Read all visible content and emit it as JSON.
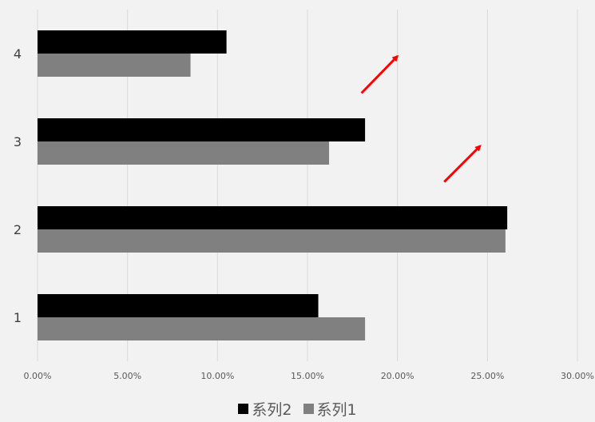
{
  "chart_data": {
    "type": "bar",
    "orientation": "horizontal",
    "categories": [
      "1",
      "2",
      "3",
      "4"
    ],
    "series": [
      {
        "name": "系列2",
        "color": "#000000",
        "values": [
          0.156,
          0.261,
          0.182,
          0.105
        ]
      },
      {
        "name": "系列1",
        "color": "#808080",
        "values": [
          0.182,
          0.26,
          0.162,
          0.085
        ]
      }
    ],
    "xlim": [
      0,
      0.3
    ],
    "xticks": [
      0,
      0.05,
      0.1,
      0.15,
      0.2,
      0.25,
      0.3
    ],
    "xtick_labels": [
      "0.00%",
      "5.00%",
      "10.00%",
      "15.00%",
      "20.00%",
      "25.00%",
      "30.00%"
    ],
    "grid": "vertical",
    "legend_position": "bottom",
    "annotations": [
      {
        "type": "arrow",
        "color": "#ff0000",
        "from": [
          0.18,
          3.55
        ],
        "to": [
          0.2,
          3.97
        ]
      },
      {
        "type": "arrow",
        "color": "#ff0000",
        "from": [
          0.226,
          2.54
        ],
        "to": [
          0.246,
          2.95
        ]
      }
    ]
  },
  "legend": {
    "items": [
      {
        "label": "系列2",
        "color": "#000000"
      },
      {
        "label": "系列1",
        "color": "#808080"
      }
    ]
  }
}
